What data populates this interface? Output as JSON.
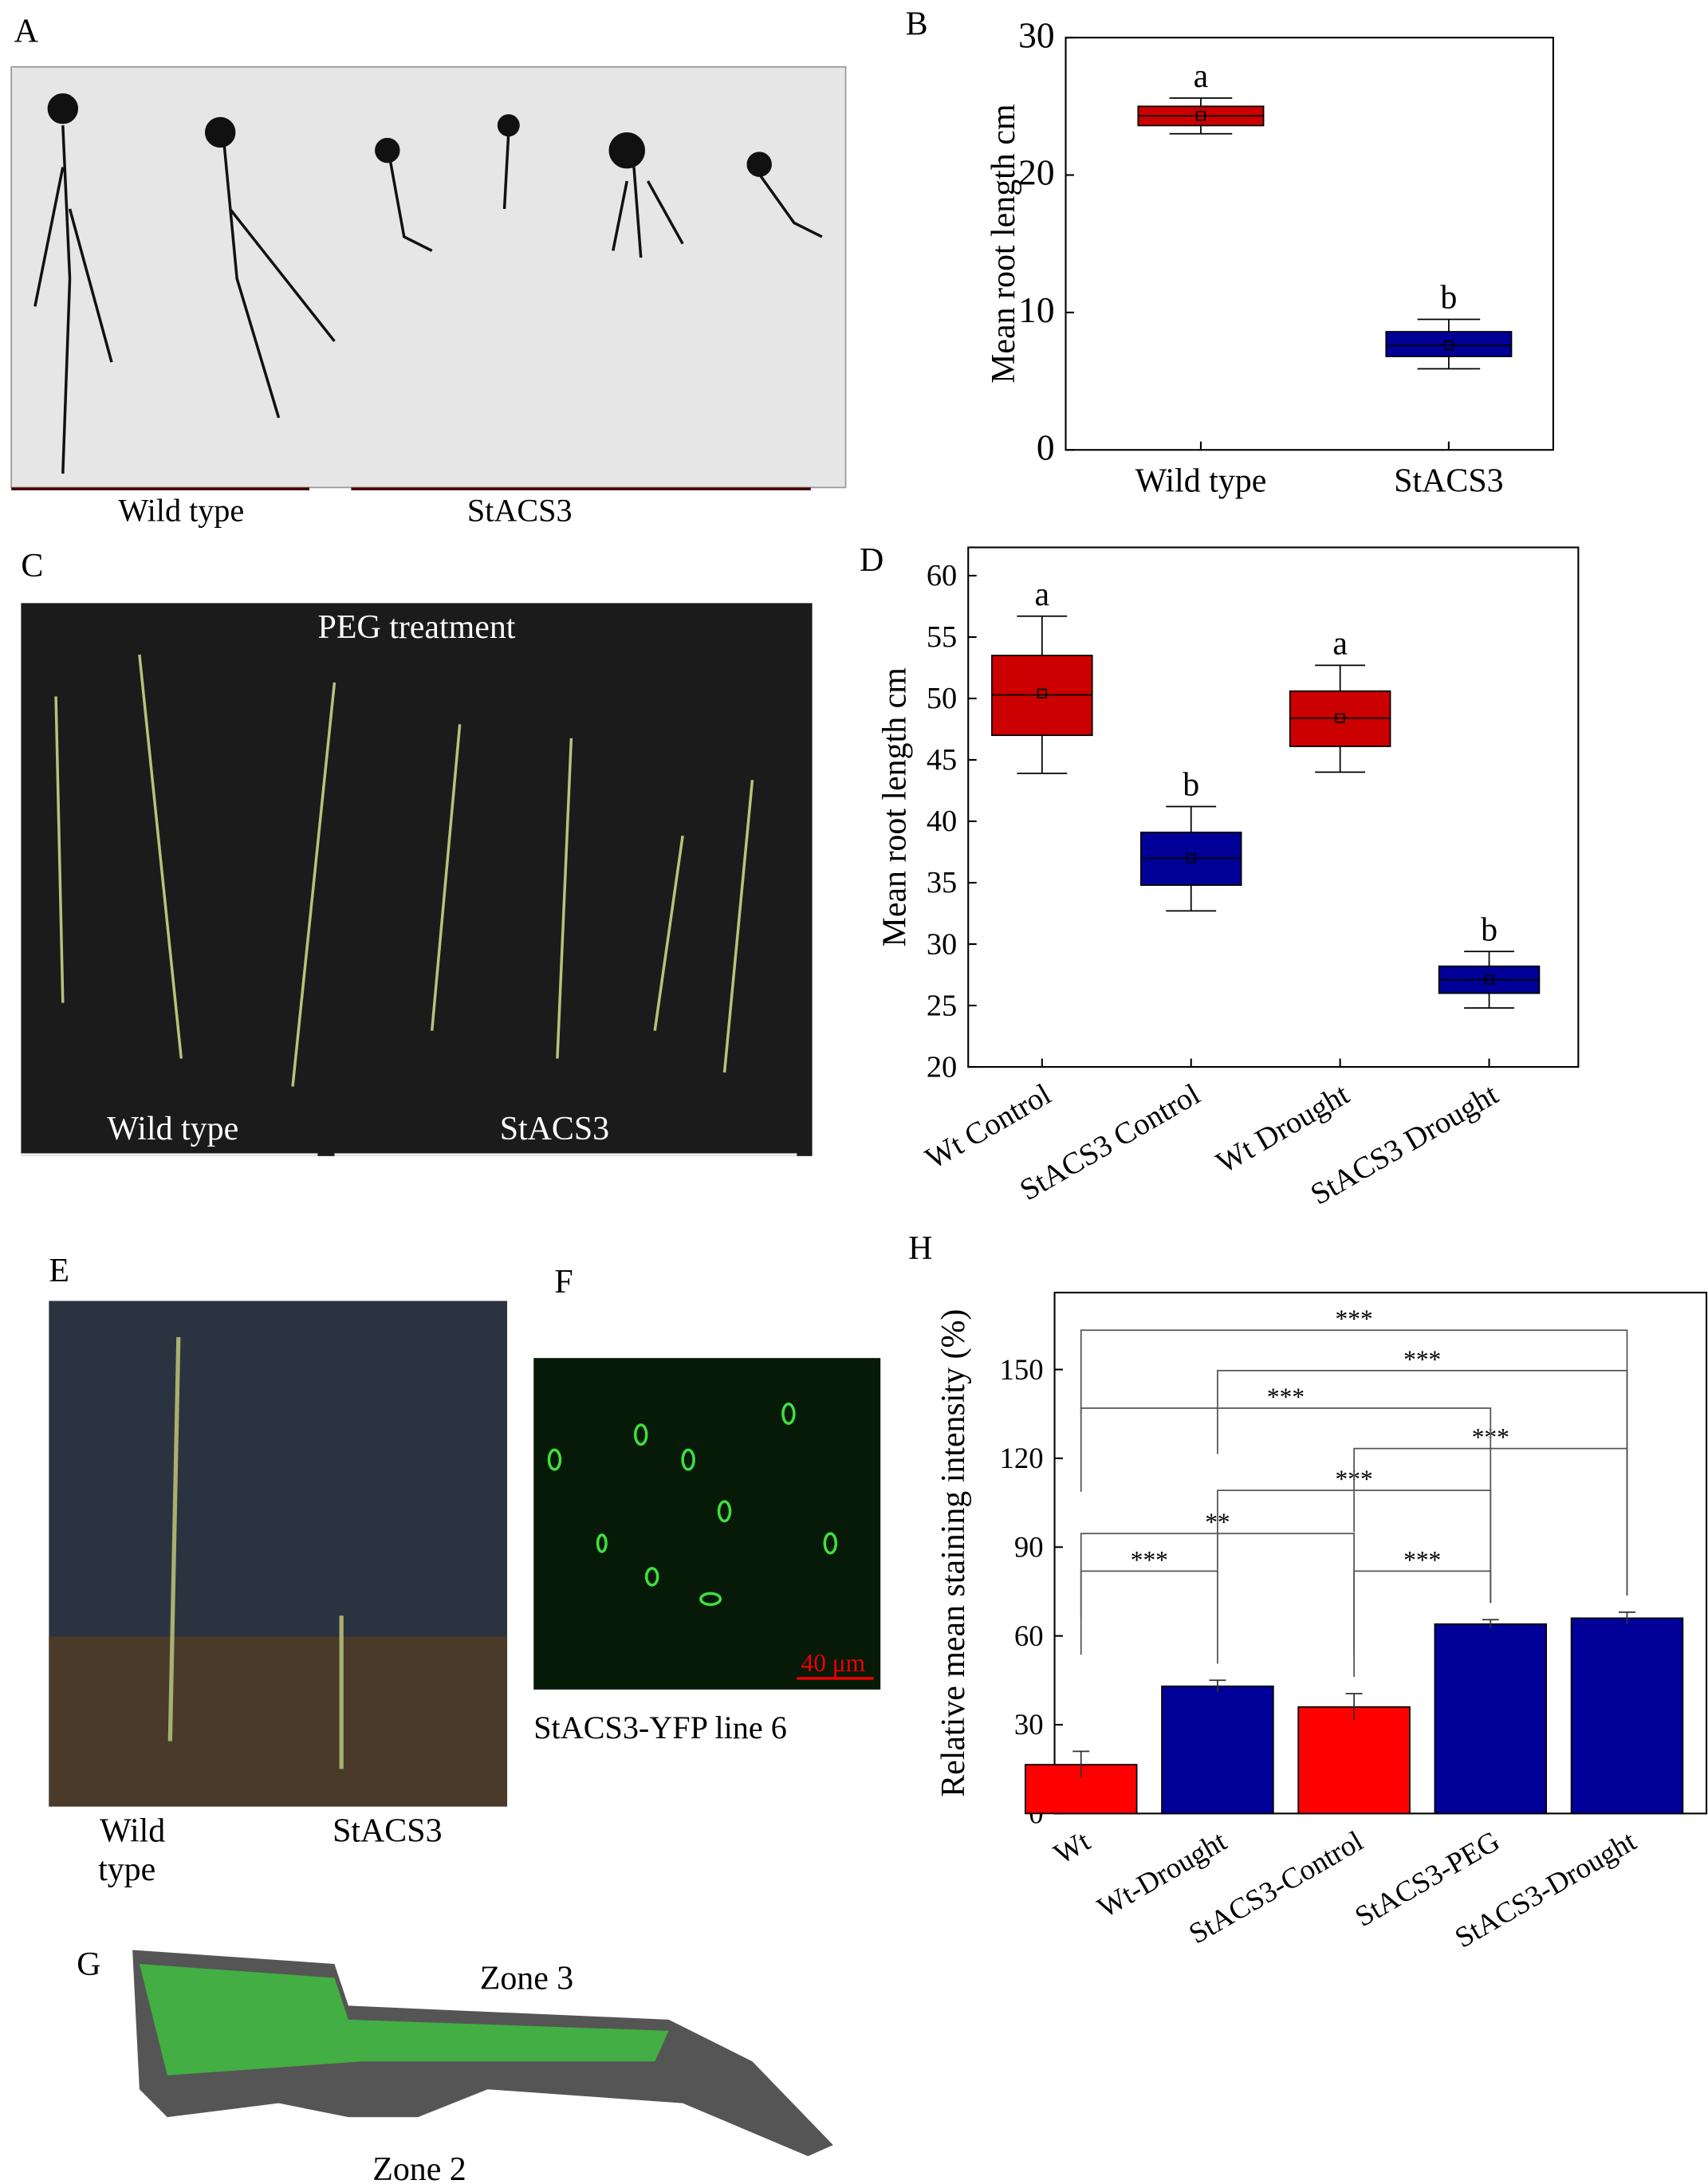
{
  "panels": {
    "A": {
      "letter": "A",
      "labels": [
        "Wild type",
        "StACS3"
      ]
    },
    "C": {
      "letter": "C",
      "title": "PEG  treatment",
      "labels": [
        "Wild type",
        "StACS3"
      ]
    },
    "E": {
      "letter": "E",
      "labels": [
        "Wild",
        "type",
        "StACS3"
      ]
    },
    "F": {
      "letter": "F",
      "scale": "40 μm",
      "caption": "StACS3-YFP line 6"
    },
    "G": {
      "letter": "G",
      "labels": [
        "Zone 3",
        "Zone 2"
      ]
    }
  },
  "chart_data": [
    {
      "type": "box",
      "panel": "B",
      "ylabel": "Mean root length cm",
      "categories": [
        "Wild type",
        "StACS3"
      ],
      "whisker_low": [
        23.0,
        5.9
      ],
      "q1": [
        23.6,
        6.8
      ],
      "median": [
        24.3,
        7.6
      ],
      "q3": [
        25.0,
        8.6
      ],
      "whisker_high": [
        25.6,
        9.5
      ],
      "mean": [
        24.3,
        7.6
      ],
      "colors": [
        "#cc0000",
        "#000099"
      ],
      "letters": [
        "a",
        "b"
      ],
      "ylim": [
        0,
        30
      ],
      "yticks": [
        0,
        10,
        20,
        30
      ]
    },
    {
      "type": "box",
      "panel": "D",
      "ylabel": "Mean root length cm",
      "categories": [
        "Wt Control",
        "StACS3 Control",
        "Wt Drought",
        "StACS3 Drought"
      ],
      "whisker_low": [
        43.9,
        32.7,
        44.0,
        24.8
      ],
      "q1": [
        47.0,
        34.8,
        46.1,
        26.0
      ],
      "median": [
        50.3,
        37.0,
        48.4,
        27.1
      ],
      "q3": [
        53.5,
        39.1,
        50.6,
        28.2
      ],
      "whisker_high": [
        56.7,
        41.2,
        52.7,
        29.4
      ],
      "mean": [
        50.4,
        37.0,
        48.4,
        27.1
      ],
      "colors": [
        "#cc0000",
        "#000099",
        "#cc0000",
        "#000099"
      ],
      "letters": [
        "a",
        "b",
        "a",
        "b"
      ],
      "ylim": [
        20,
        62.3
      ],
      "yticks": [
        20,
        25,
        30,
        35,
        40,
        45,
        50,
        55,
        60
      ]
    },
    {
      "type": "bar",
      "panel": "H",
      "ylabel": "Relative mean staining intensity (%)",
      "categories": [
        "Wt",
        "Wt-Drought",
        "StACS3-Control",
        "StACS3-PEG",
        "StACS3-Drought"
      ],
      "values": [
        16.5,
        43,
        36,
        64,
        66
      ],
      "errors": [
        4.5,
        2,
        4.5,
        1.5,
        2
      ],
      "colors": [
        "#ff0000",
        "#000099",
        "#ff0000",
        "#000099",
        "#000099"
      ],
      "comparisons": [
        {
          "groups": [
            0,
            1
          ],
          "label": "***"
        },
        {
          "groups": [
            0,
            2
          ],
          "label": "**"
        },
        {
          "groups": [
            2,
            3
          ],
          "label": "***"
        },
        {
          "groups": [
            1,
            3
          ],
          "label": "***"
        },
        {
          "groups": [
            2,
            4
          ],
          "label": "***"
        },
        {
          "groups": [
            0,
            3
          ],
          "label": "***"
        },
        {
          "groups": [
            1,
            4
          ],
          "label": "***"
        },
        {
          "groups": [
            0,
            4
          ],
          "label": "***"
        }
      ],
      "ylim": [
        0,
        176
      ],
      "yticks": [
        0,
        30,
        60,
        90,
        120,
        150
      ]
    }
  ]
}
